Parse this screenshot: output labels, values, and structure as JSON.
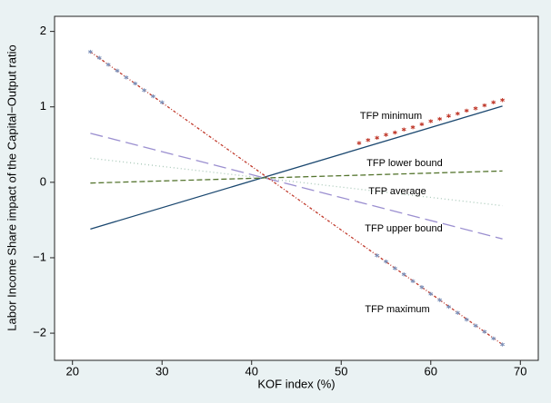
{
  "chart_data": {
    "type": "line",
    "xlabel": "KOF index (%)",
    "ylabel": "Labor Income Share impact of the Capital−Output ratio",
    "x": [
      22,
      68
    ],
    "series": [
      {
        "name": "TFP minimum",
        "color": "#1a476f",
        "dash": "solid",
        "values": [
          -0.62,
          1.01
        ]
      },
      {
        "name": "TFP lower bound",
        "color": "#55752f",
        "dash": "dashed",
        "values": [
          -0.01,
          0.15
        ]
      },
      {
        "name": "TFP average",
        "color": "#a8c8b8",
        "dash": "dotted",
        "values": [
          0.32,
          -0.31
        ]
      },
      {
        "name": "TFP upper bound",
        "color": "#9b8fd0",
        "dash": "longdash",
        "values": [
          0.65,
          -0.75
        ]
      },
      {
        "name": "TFP maximum",
        "color": "#c0392b",
        "dash": "dotdash",
        "values": [
          1.73,
          -2.15
        ]
      }
    ],
    "star_series": [
      {
        "color": "#c0392b",
        "x": [
          52,
          53,
          54,
          55,
          56,
          57,
          58,
          59,
          60,
          61,
          62,
          63,
          64,
          65,
          66,
          67,
          68
        ],
        "values": [
          0.52,
          0.56,
          0.59,
          0.63,
          0.66,
          0.7,
          0.73,
          0.77,
          0.81,
          0.84,
          0.88,
          0.91,
          0.95,
          0.98,
          1.02,
          1.06,
          1.09
        ]
      },
      {
        "color": "#7a8fb8",
        "x": [
          22,
          23,
          24,
          25,
          26,
          27,
          28,
          29,
          30,
          54,
          55,
          56,
          57,
          58,
          59,
          60,
          61,
          62,
          63,
          64,
          65,
          66,
          67,
          68
        ],
        "values": [
          1.73,
          1.65,
          1.56,
          1.48,
          1.39,
          1.31,
          1.22,
          1.14,
          1.06,
          -0.97,
          -1.05,
          -1.14,
          -1.22,
          -1.31,
          -1.39,
          -1.48,
          -1.56,
          -1.65,
          -1.73,
          -1.82,
          -1.9,
          -1.98,
          -2.07,
          -2.15
        ]
      }
    ],
    "xlim": [
      18,
      72
    ],
    "ylim": [
      -2.36,
      2.2
    ],
    "xticks": [
      20,
      30,
      40,
      50,
      60,
      70
    ],
    "yticks": [
      2,
      1,
      0,
      {
        "value": -1,
        "label": "−1"
      },
      {
        "value": -2,
        "label": "−2"
      }
    ],
    "grid": false
  }
}
